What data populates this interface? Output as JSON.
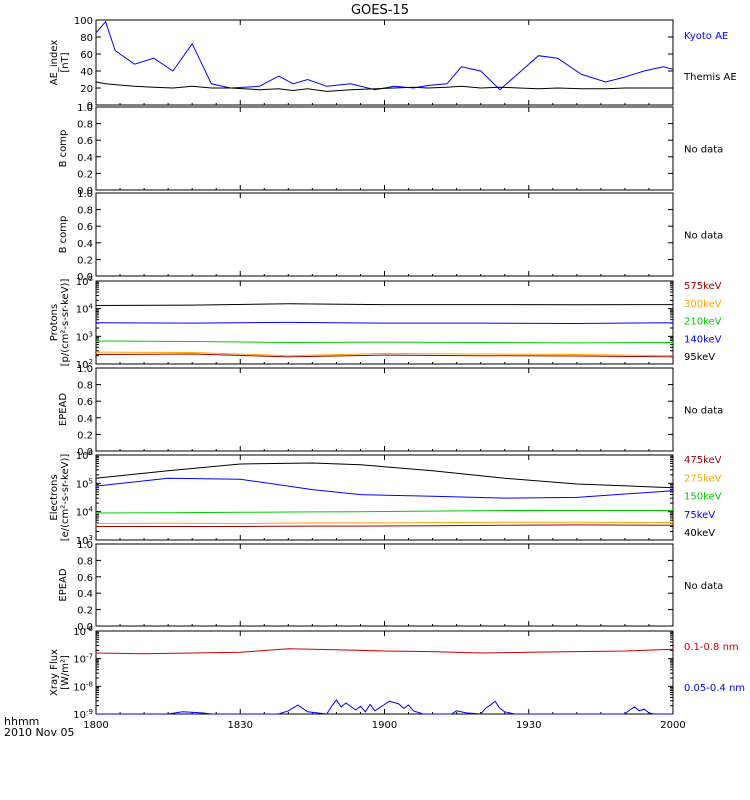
{
  "title": "GOES-15",
  "x_axis": {
    "label_line1": "hhmm",
    "label_line2": "2010 Nov 05",
    "ticks": [
      "1800",
      "1830",
      "1900",
      "1930",
      "2000"
    ]
  },
  "colors": {
    "black": "#000000",
    "blue": "#0000ff",
    "red": "#cc0000",
    "darkred": "#990000",
    "orange": "#ffa500",
    "green": "#00cc00"
  },
  "chart_data": [
    {
      "type": "line",
      "ylabel": "AE_index [nT]",
      "ylabel_lines": [
        "AE_index",
        "[nT]"
      ],
      "yscale": "linear",
      "ylim": [
        0,
        100
      ],
      "yticks": [
        "0",
        "20",
        "40",
        "60",
        "80",
        "100"
      ],
      "xlim": [
        "18:00",
        "20:00"
      ],
      "x_minutes": [
        0,
        2,
        4,
        8,
        12,
        16,
        20,
        24,
        28,
        34,
        38,
        41,
        44,
        48,
        53,
        58,
        62,
        66,
        69,
        73,
        76,
        80,
        84,
        88,
        92,
        96,
        101,
        106,
        110,
        114,
        118,
        120
      ],
      "series": [
        {
          "name": "Kyoto AE",
          "color": "#0000ff",
          "values": [
            85,
            98,
            64,
            48,
            55,
            40,
            72,
            25,
            20,
            22,
            34,
            25,
            30,
            22,
            25,
            18,
            22,
            20,
            23,
            25,
            45,
            40,
            18,
            38,
            58,
            55,
            36,
            27,
            33,
            40,
            45,
            42
          ]
        },
        {
          "name": "Themis AE",
          "color": "#000000",
          "values": [
            27,
            25,
            24,
            22,
            21,
            20,
            22,
            20,
            20,
            18,
            19,
            17,
            19,
            16,
            18,
            19,
            20,
            21,
            20,
            21,
            22,
            20,
            21,
            20,
            19,
            20,
            19,
            19,
            20,
            20,
            20,
            20
          ]
        }
      ]
    },
    {
      "type": "line",
      "ylabel": "B comp",
      "ylabel_lines": [
        "B comp"
      ],
      "yscale": "linear",
      "ylim": [
        0,
        1
      ],
      "yticks": [
        "0.0",
        "0.2",
        "0.4",
        "0.6",
        "0.8",
        "1.0"
      ],
      "note": "No data",
      "series": []
    },
    {
      "type": "line",
      "ylabel": "B comp",
      "ylabel_lines": [
        "B comp"
      ],
      "yscale": "linear",
      "ylim": [
        0,
        1
      ],
      "yticks": [
        "0.0",
        "0.2",
        "0.4",
        "0.6",
        "0.8",
        "1.0"
      ],
      "note": "No data",
      "series": []
    },
    {
      "type": "line",
      "ylabel": "Protons [p/(cm2-s-sr-keV)]",
      "ylabel_lines": [
        "Protons",
        "[p/(cm²-s-sr-keV)]"
      ],
      "yscale": "log",
      "ylim": [
        100,
        100000
      ],
      "yticks": [
        "10^2",
        "10^3",
        "10^4",
        "10^5"
      ],
      "x_minutes": [
        0,
        20,
        40,
        60,
        80,
        100,
        120
      ],
      "series": [
        {
          "name": "575keV",
          "color": "#990000",
          "values": [
            220,
            230,
            180,
            210,
            200,
            195,
            180
          ]
        },
        {
          "name": "300keV",
          "color": "#ffa500",
          "values": [
            270,
            260,
            200,
            240,
            230,
            220,
            200
          ]
        },
        {
          "name": "210keV",
          "color": "#00cc00",
          "values": [
            680,
            650,
            600,
            620,
            600,
            580,
            600
          ]
        },
        {
          "name": "140keV",
          "color": "#0000ff",
          "values": [
            3100,
            3000,
            3200,
            3000,
            3000,
            2900,
            3100
          ]
        },
        {
          "name": "95keV",
          "color": "#000000",
          "values": [
            13000,
            13500,
            15000,
            14000,
            14000,
            13800,
            14000
          ]
        }
      ]
    },
    {
      "type": "line",
      "ylabel": "EPEAD",
      "ylabel_lines": [
        "EPEAD"
      ],
      "yscale": "linear",
      "ylim": [
        0,
        1
      ],
      "yticks": [
        "0.0",
        "0.2",
        "0.4",
        "0.6",
        "0.8",
        "1.0"
      ],
      "note": "No data",
      "series": []
    },
    {
      "type": "line",
      "ylabel": "Electrons [e/(cm2-s-sr-keV)]",
      "ylabel_lines": [
        "Electrons",
        "[e/(cm²-s-sr-keV)]"
      ],
      "yscale": "log",
      "ylim": [
        1000,
        1000000
      ],
      "yticks": [
        "10^3",
        "10^4",
        "10^5",
        "10^6"
      ],
      "x_minutes": [
        0,
        15,
        30,
        45,
        55,
        70,
        85,
        100,
        120
      ],
      "series": [
        {
          "name": "475keV",
          "color": "#990000",
          "values": [
            3000,
            3000,
            3000,
            3100,
            3100,
            3200,
            3300,
            3400,
            3300
          ]
        },
        {
          "name": "275keV",
          "color": "#ffa500",
          "values": [
            3800,
            3900,
            3800,
            4000,
            4000,
            4100,
            4200,
            4200,
            4100
          ]
        },
        {
          "name": "150keV",
          "color": "#00cc00",
          "values": [
            9000,
            9200,
            9500,
            9800,
            10000,
            10500,
            11000,
            11000,
            11000
          ]
        },
        {
          "name": "75keV",
          "color": "#0000ff",
          "values": [
            80000,
            150000,
            140000,
            60000,
            40000,
            35000,
            30000,
            32000,
            55000
          ]
        },
        {
          "name": "40keV",
          "color": "#000000",
          "values": [
            150000,
            280000,
            480000,
            520000,
            450000,
            280000,
            150000,
            95000,
            70000
          ]
        }
      ]
    },
    {
      "type": "line",
      "ylabel": "EPEAD",
      "ylabel_lines": [
        "EPEAD"
      ],
      "yscale": "linear",
      "ylim": [
        0,
        1
      ],
      "yticks": [
        "0.0",
        "0.2",
        "0.4",
        "0.6",
        "0.8",
        "1.0"
      ],
      "note": "No data",
      "series": []
    },
    {
      "type": "line",
      "ylabel": "Xray Flux [W/m2]",
      "ylabel_lines": [
        "Xray Flux",
        "[W/m²]"
      ],
      "yscale": "log",
      "ylim": [
        1e-09,
        1e-06
      ],
      "yticks": [
        "10^-9",
        "10^-8",
        "10^-7",
        "10^-6"
      ],
      "series": [
        {
          "name": "0.1-0.8 nm",
          "color": "#cc0000",
          "x_minutes": [
            0,
            10,
            20,
            30,
            40,
            50,
            60,
            70,
            80,
            90,
            100,
            110,
            120
          ],
          "values": [
            1.6e-07,
            1.5e-07,
            1.6e-07,
            1.7e-07,
            2.3e-07,
            2.1e-07,
            1.9e-07,
            1.8e-07,
            1.6e-07,
            1.7e-07,
            1.8e-07,
            1.9e-07,
            2.2e-07
          ]
        },
        {
          "name": "0.05-0.4 nm",
          "color": "#0000ff",
          "x_minutes": [
            0,
            15,
            18,
            22,
            24,
            38,
            40,
            42,
            44,
            48,
            49,
            50,
            51,
            52,
            54,
            55,
            56,
            57,
            58,
            60,
            61,
            62,
            63,
            64,
            65,
            66,
            68,
            74,
            75,
            77,
            80,
            81,
            82,
            83,
            84,
            85,
            87,
            88,
            110,
            111,
            112,
            113,
            114,
            115,
            116,
            120
          ],
          "values": [
            1e-09,
            1e-09,
            1.2e-09,
            1.1e-09,
            1e-09,
            1e-09,
            1.3e-09,
            2.1e-09,
            1.2e-09,
            1e-09,
            1.9e-09,
            3.2e-09,
            1.8e-09,
            2.5e-09,
            1.4e-09,
            1.9e-09,
            1.2e-09,
            2.2e-09,
            1.3e-09,
            2.2e-09,
            2.9e-09,
            2.6e-09,
            2.3e-09,
            1.6e-09,
            2.1e-09,
            1.3e-09,
            1e-09,
            1e-09,
            1.3e-09,
            1.1e-09,
            1e-09,
            1.6e-09,
            2.1e-09,
            2.9e-09,
            1.6e-09,
            1.2e-09,
            1e-09,
            1e-09,
            1e-09,
            1.4e-09,
            1.8e-09,
            1.3e-09,
            1.5e-09,
            1.1e-09,
            1e-09,
            1e-09
          ]
        }
      ]
    }
  ]
}
